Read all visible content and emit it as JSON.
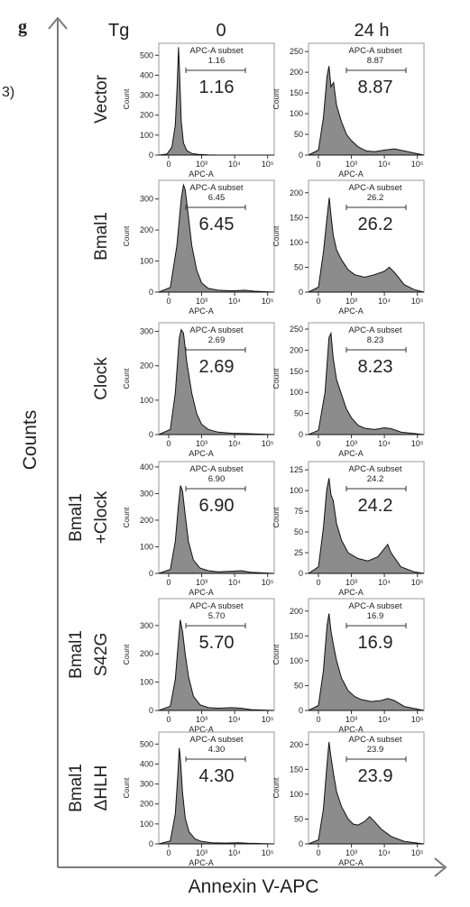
{
  "figure": {
    "panel_letter": "g",
    "corner_fragment": "3)",
    "y_title": "Counts",
    "x_title": "Annexin V-APC",
    "tg_label": "Tg",
    "columns": [
      "0",
      "24 h"
    ],
    "rows": [
      {
        "lines": [
          "Vector"
        ]
      },
      {
        "lines": [
          "Bmal1"
        ]
      },
      {
        "lines": [
          "Clock"
        ]
      },
      {
        "lines": [
          "Bmal1",
          "+Clock"
        ]
      },
      {
        "lines": [
          "Bmal1",
          "S42G"
        ]
      },
      {
        "lines": [
          "Bmal1",
          "ΔHLH"
        ]
      }
    ]
  },
  "chart_data": [
    {
      "type": "area",
      "row": "Vector",
      "column": "0",
      "ylabel": "Count",
      "xlabel": "APC-A",
      "yticks": [
        0,
        100,
        200,
        300,
        400,
        500
      ],
      "ylim": [
        0,
        560
      ],
      "xticks": [
        "0",
        "10³",
        "10⁴",
        "10⁵"
      ],
      "gate_label": "APC-A subset",
      "gate_small": "1.16",
      "gate_value": "1.16",
      "curve": [
        [
          -0.3,
          0
        ],
        [
          -0.05,
          5
        ],
        [
          0.1,
          40
        ],
        [
          0.2,
          150
        ],
        [
          0.26,
          360
        ],
        [
          0.3,
          540
        ],
        [
          0.33,
          420
        ],
        [
          0.38,
          170
        ],
        [
          0.45,
          60
        ],
        [
          0.55,
          22
        ],
        [
          0.7,
          8
        ],
        [
          0.9,
          3
        ],
        [
          1.2,
          1
        ],
        [
          1.5,
          0
        ],
        [
          3.2,
          0
        ]
      ]
    },
    {
      "type": "area",
      "row": "Vector",
      "column": "24 h",
      "ylabel": "Count",
      "xlabel": "APC-A",
      "yticks": [
        0,
        50,
        100,
        150,
        200,
        250
      ],
      "ylim": [
        0,
        270
      ],
      "xticks": [
        "0",
        "10³",
        "10⁴",
        "10⁵"
      ],
      "gate_label": "APC-A subset",
      "gate_small": "8.87",
      "gate_value": "8.87",
      "curve": [
        [
          -0.3,
          0
        ],
        [
          0.0,
          12
        ],
        [
          0.15,
          90
        ],
        [
          0.26,
          190
        ],
        [
          0.32,
          215
        ],
        [
          0.38,
          165
        ],
        [
          0.46,
          175
        ],
        [
          0.55,
          120
        ],
        [
          0.7,
          80
        ],
        [
          0.85,
          50
        ],
        [
          1.0,
          35
        ],
        [
          1.2,
          20
        ],
        [
          1.45,
          10
        ],
        [
          1.7,
          8
        ],
        [
          2.0,
          12
        ],
        [
          2.3,
          15
        ],
        [
          2.6,
          10
        ],
        [
          2.9,
          5
        ],
        [
          3.2,
          0
        ]
      ]
    },
    {
      "type": "area",
      "row": "Bmal1",
      "column": "0",
      "ylabel": "Count",
      "xlabel": "APC-A",
      "yticks": [
        0,
        100,
        200,
        300
      ],
      "ylim": [
        0,
        360
      ],
      "xticks": [
        "0",
        "10³",
        "10⁴",
        "10⁵"
      ],
      "gate_label": "APC-A subset",
      "gate_small": "6.45",
      "gate_value": "6.45",
      "curve": [
        [
          -0.3,
          0
        ],
        [
          0.05,
          15
        ],
        [
          0.25,
          150
        ],
        [
          0.38,
          300
        ],
        [
          0.45,
          345
        ],
        [
          0.5,
          330
        ],
        [
          0.58,
          260
        ],
        [
          0.7,
          150
        ],
        [
          0.85,
          70
        ],
        [
          1.0,
          30
        ],
        [
          1.2,
          12
        ],
        [
          1.5,
          6
        ],
        [
          1.9,
          4
        ],
        [
          2.3,
          6
        ],
        [
          2.6,
          3
        ],
        [
          3.2,
          0
        ]
      ]
    },
    {
      "type": "area",
      "row": "Bmal1",
      "column": "24 h",
      "ylabel": "Count",
      "xlabel": "APC-A",
      "yticks": [
        0,
        50,
        100,
        150,
        200
      ],
      "ylim": [
        0,
        225
      ],
      "xticks": [
        "0",
        "10³",
        "10⁴",
        "10⁵"
      ],
      "gate_label": "APC-A subset",
      "gate_small": "26.2",
      "gate_value": "26.2",
      "curve": [
        [
          -0.3,
          0
        ],
        [
          0.0,
          10
        ],
        [
          0.15,
          80
        ],
        [
          0.26,
          150
        ],
        [
          0.33,
          190
        ],
        [
          0.38,
          155
        ],
        [
          0.45,
          115
        ],
        [
          0.55,
          85
        ],
        [
          0.7,
          65
        ],
        [
          0.9,
          45
        ],
        [
          1.1,
          35
        ],
        [
          1.4,
          30
        ],
        [
          1.7,
          35
        ],
        [
          2.0,
          42
        ],
        [
          2.15,
          50
        ],
        [
          2.3,
          40
        ],
        [
          2.6,
          15
        ],
        [
          2.9,
          5
        ],
        [
          3.2,
          0
        ]
      ]
    },
    {
      "type": "area",
      "row": "Clock",
      "column": "0",
      "ylabel": "Count",
      "xlabel": "APC-A",
      "yticks": [
        0,
        100,
        200,
        300
      ],
      "ylim": [
        0,
        325
      ],
      "xticks": [
        "0",
        "10³",
        "10⁴",
        "10⁵"
      ],
      "gate_label": "APC-A subset",
      "gate_small": "2.69",
      "gate_value": "2.69",
      "curve": [
        [
          -0.3,
          0
        ],
        [
          0.05,
          15
        ],
        [
          0.2,
          120
        ],
        [
          0.32,
          280
        ],
        [
          0.38,
          305
        ],
        [
          0.45,
          295
        ],
        [
          0.55,
          210
        ],
        [
          0.7,
          120
        ],
        [
          0.85,
          60
        ],
        [
          1.0,
          30
        ],
        [
          1.2,
          15
        ],
        [
          1.5,
          7
        ],
        [
          1.9,
          4
        ],
        [
          2.3,
          3
        ],
        [
          3.2,
          0
        ]
      ]
    },
    {
      "type": "area",
      "row": "Clock",
      "column": "24 h",
      "ylabel": "Count",
      "xlabel": "APC-A",
      "yticks": [
        0,
        50,
        100,
        150,
        200,
        250
      ],
      "ylim": [
        0,
        265
      ],
      "xticks": [
        "0",
        "10³",
        "10⁴",
        "10⁵"
      ],
      "gate_label": "APC-A subset",
      "gate_small": "8.23",
      "gate_value": "8.23",
      "curve": [
        [
          -0.3,
          0
        ],
        [
          0.0,
          10
        ],
        [
          0.2,
          100
        ],
        [
          0.32,
          230
        ],
        [
          0.38,
          240
        ],
        [
          0.45,
          180
        ],
        [
          0.55,
          130
        ],
        [
          0.7,
          95
        ],
        [
          0.85,
          60
        ],
        [
          1.0,
          40
        ],
        [
          1.2,
          22
        ],
        [
          1.4,
          15
        ],
        [
          1.7,
          12
        ],
        [
          2.0,
          16
        ],
        [
          2.2,
          14
        ],
        [
          2.5,
          6
        ],
        [
          3.2,
          0
        ]
      ]
    },
    {
      "type": "area",
      "row": "Bmal1 +Clock",
      "column": "0",
      "ylabel": "Count",
      "xlabel": "APC-A",
      "yticks": [
        0,
        100,
        200,
        300,
        400
      ],
      "ylim": [
        0,
        420
      ],
      "xticks": [
        "0",
        "10³",
        "10⁴",
        "10⁵"
      ],
      "gate_label": "APC-A subset",
      "gate_small": "6.90",
      "gate_value": "6.90",
      "curve": [
        [
          -0.3,
          0
        ],
        [
          0.05,
          15
        ],
        [
          0.2,
          120
        ],
        [
          0.3,
          260
        ],
        [
          0.36,
          330
        ],
        [
          0.42,
          310
        ],
        [
          0.5,
          220
        ],
        [
          0.6,
          120
        ],
        [
          0.75,
          50
        ],
        [
          0.95,
          20
        ],
        [
          1.2,
          10
        ],
        [
          1.5,
          6
        ],
        [
          1.9,
          8
        ],
        [
          2.2,
          10
        ],
        [
          2.5,
          4
        ],
        [
          3.2,
          0
        ]
      ]
    },
    {
      "type": "area",
      "row": "Bmal1 +Clock",
      "column": "24 h",
      "ylabel": "Count",
      "xlabel": "APC-A",
      "yticks": [
        0,
        25,
        50,
        75,
        100,
        125
      ],
      "ylim": [
        0,
        135
      ],
      "xticks": [
        "0",
        "10³",
        "10⁴",
        "10⁵"
      ],
      "gate_label": "APC-A subset",
      "gate_small": "24.2",
      "gate_value": "24.2",
      "curve": [
        [
          -0.3,
          0
        ],
        [
          0.0,
          8
        ],
        [
          0.15,
          55
        ],
        [
          0.25,
          100
        ],
        [
          0.32,
          115
        ],
        [
          0.38,
          95
        ],
        [
          0.45,
          88
        ],
        [
          0.55,
          60
        ],
        [
          0.7,
          40
        ],
        [
          0.9,
          25
        ],
        [
          1.2,
          18
        ],
        [
          1.5,
          15
        ],
        [
          1.8,
          20
        ],
        [
          2.0,
          30
        ],
        [
          2.1,
          35
        ],
        [
          2.2,
          25
        ],
        [
          2.5,
          8
        ],
        [
          2.9,
          2
        ],
        [
          3.2,
          0
        ]
      ]
    },
    {
      "type": "area",
      "row": "Bmal1 S42G",
      "column": "0",
      "ylabel": "Count",
      "xlabel": "APC-A",
      "yticks": [
        0,
        100,
        200,
        300
      ],
      "ylim": [
        0,
        395
      ],
      "xticks": [
        "0",
        "10³",
        "10⁴",
        "10⁵"
      ],
      "gate_label": "APC-A subset",
      "gate_small": "5.70",
      "gate_value": "5.70",
      "curve": [
        [
          -0.3,
          0
        ],
        [
          0.05,
          15
        ],
        [
          0.2,
          110
        ],
        [
          0.3,
          250
        ],
        [
          0.35,
          320
        ],
        [
          0.42,
          280
        ],
        [
          0.5,
          200
        ],
        [
          0.6,
          120
        ],
        [
          0.75,
          50
        ],
        [
          0.95,
          20
        ],
        [
          1.2,
          10
        ],
        [
          1.5,
          8
        ],
        [
          1.9,
          10
        ],
        [
          2.2,
          8
        ],
        [
          2.5,
          3
        ],
        [
          3.2,
          0
        ]
      ]
    },
    {
      "type": "area",
      "row": "Bmal1 S42G",
      "column": "24 h",
      "ylabel": "Count",
      "xlabel": "APC-A",
      "yticks": [
        0,
        50,
        100,
        150,
        200
      ],
      "ylim": [
        0,
        225
      ],
      "xticks": [
        "0",
        "10³",
        "10⁴",
        "10⁵"
      ],
      "gate_label": "APC-A subset",
      "gate_small": "16.9",
      "gate_value": "16.9",
      "curve": [
        [
          -0.3,
          0
        ],
        [
          0.0,
          10
        ],
        [
          0.15,
          80
        ],
        [
          0.26,
          170
        ],
        [
          0.32,
          195
        ],
        [
          0.38,
          160
        ],
        [
          0.46,
          130
        ],
        [
          0.55,
          100
        ],
        [
          0.7,
          65
        ],
        [
          0.9,
          40
        ],
        [
          1.1,
          28
        ],
        [
          1.3,
          22
        ],
        [
          1.6,
          18
        ],
        [
          1.9,
          20
        ],
        [
          2.1,
          24
        ],
        [
          2.3,
          20
        ],
        [
          2.6,
          8
        ],
        [
          3.2,
          0
        ]
      ]
    },
    {
      "type": "area",
      "row": "Bmal1 ΔHLH",
      "column": "0",
      "ylabel": "Count",
      "xlabel": "APC-A",
      "yticks": [
        0,
        100,
        200,
        300,
        400,
        500
      ],
      "ylim": [
        0,
        560
      ],
      "xticks": [
        "0",
        "10³",
        "10⁴",
        "10⁵"
      ],
      "gate_label": "APC-A subset",
      "gate_small": "4.30",
      "gate_value": "4.30",
      "curve": [
        [
          -0.3,
          0
        ],
        [
          0.05,
          15
        ],
        [
          0.2,
          150
        ],
        [
          0.28,
          350
        ],
        [
          0.32,
          480
        ],
        [
          0.36,
          420
        ],
        [
          0.42,
          260
        ],
        [
          0.5,
          130
        ],
        [
          0.62,
          60
        ],
        [
          0.8,
          25
        ],
        [
          1.0,
          12
        ],
        [
          1.3,
          6
        ],
        [
          1.7,
          4
        ],
        [
          2.1,
          6
        ],
        [
          2.4,
          3
        ],
        [
          3.2,
          0
        ]
      ]
    },
    {
      "type": "area",
      "row": "Bmal1 ΔHLH",
      "column": "24 h",
      "ylabel": "Count",
      "xlabel": "APC-A",
      "yticks": [
        0,
        50,
        100,
        150,
        200
      ],
      "ylim": [
        0,
        225
      ],
      "xticks": [
        "0",
        "10³",
        "10⁴",
        "10⁵"
      ],
      "gate_label": "APC-A subset",
      "gate_small": "23.9",
      "gate_value": "23.9",
      "curve": [
        [
          -0.3,
          0
        ],
        [
          0.0,
          8
        ],
        [
          0.15,
          70
        ],
        [
          0.26,
          160
        ],
        [
          0.32,
          205
        ],
        [
          0.38,
          175
        ],
        [
          0.46,
          140
        ],
        [
          0.55,
          105
        ],
        [
          0.7,
          75
        ],
        [
          0.9,
          50
        ],
        [
          1.05,
          40
        ],
        [
          1.2,
          38
        ],
        [
          1.4,
          45
        ],
        [
          1.55,
          55
        ],
        [
          1.7,
          45
        ],
        [
          1.9,
          30
        ],
        [
          2.2,
          15
        ],
        [
          2.6,
          5
        ],
        [
          3.2,
          0
        ]
      ]
    }
  ]
}
